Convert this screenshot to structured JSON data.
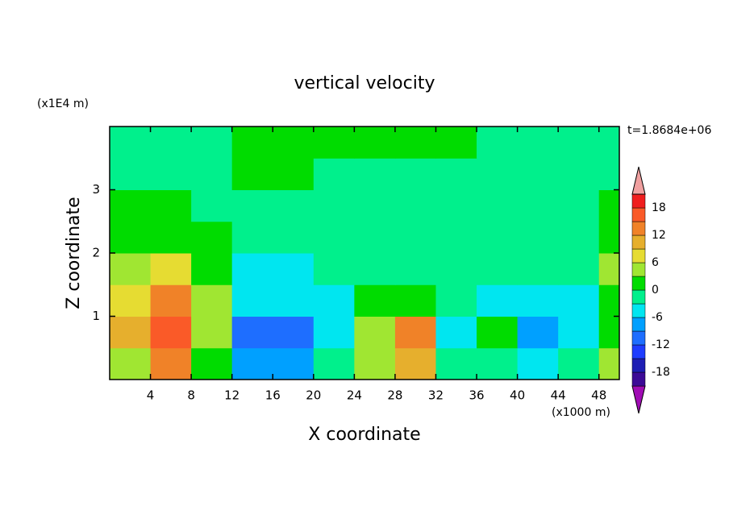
{
  "chart_data": {
    "type": "contour",
    "title": "vertical velocity",
    "xlabel": "X coordinate",
    "ylabel": "Z coordinate",
    "x_unit": "(x1000 m)",
    "y_unit": "(x1E4 m)",
    "time_label": "t=1.8684e+06",
    "xlim": [
      0,
      50
    ],
    "ylim": [
      0,
      4
    ],
    "xticks": [
      4,
      8,
      12,
      16,
      20,
      24,
      28,
      32,
      36,
      40,
      44,
      48
    ],
    "yticks": [
      1,
      2,
      3
    ],
    "field": {
      "x": [
        2,
        6,
        10,
        14,
        18,
        22,
        26,
        30,
        34,
        38,
        42,
        46,
        50
      ],
      "z": [
        0.25,
        0.75,
        1.25,
        1.75,
        2.25,
        2.75,
        3.25,
        3.75
      ],
      "values": [
        [
          3,
          14,
          2,
          -8,
          -8,
          -3,
          3,
          10,
          -3,
          -3,
          -5,
          -2,
          3
        ],
        [
          10,
          15,
          5,
          -10,
          -10,
          -5,
          4,
          12,
          -6,
          2,
          -8,
          -4,
          2
        ],
        [
          8,
          12,
          3,
          -6,
          -6,
          -4,
          1,
          2,
          -3,
          -4,
          -5,
          -4,
          2
        ],
        [
          4,
          6,
          1,
          -4,
          -4,
          -2,
          -1,
          -1,
          -2,
          -3,
          -3,
          -2,
          3
        ],
        [
          1,
          2,
          1,
          -1,
          -1,
          -1,
          -1,
          -1,
          -1,
          -1,
          -1,
          -1,
          1
        ],
        [
          1,
          1,
          -1,
          -1,
          -1,
          -1,
          -1,
          -1,
          -1,
          -1,
          -1,
          -1,
          1
        ],
        [
          -1,
          -1,
          -1,
          1,
          1,
          -1,
          -1,
          -1,
          -1,
          -1,
          -1,
          -1,
          -1
        ],
        [
          -1,
          -1,
          -1,
          1,
          1,
          1,
          1,
          1,
          1,
          -1,
          -1,
          -1,
          -1
        ]
      ]
    },
    "colorbar": {
      "levels": [
        -21,
        -18,
        -15,
        -12,
        -9,
        -6,
        -3,
        0,
        3,
        6,
        9,
        12,
        15,
        18,
        21
      ],
      "colors": [
        "#a00cb4",
        "#3c0a96",
        "#1e1eb4",
        "#1e3cff",
        "#1e6eff",
        "#00a0ff",
        "#00e6f0",
        "#00f08c",
        "#00dc00",
        "#a0e632",
        "#e6dc32",
        "#e6af2d",
        "#f08228",
        "#fa5a28",
        "#f01e1e",
        "#f0a0a0"
      ],
      "ticks": [
        18,
        12,
        6,
        0,
        -6,
        -12,
        -18
      ]
    }
  }
}
